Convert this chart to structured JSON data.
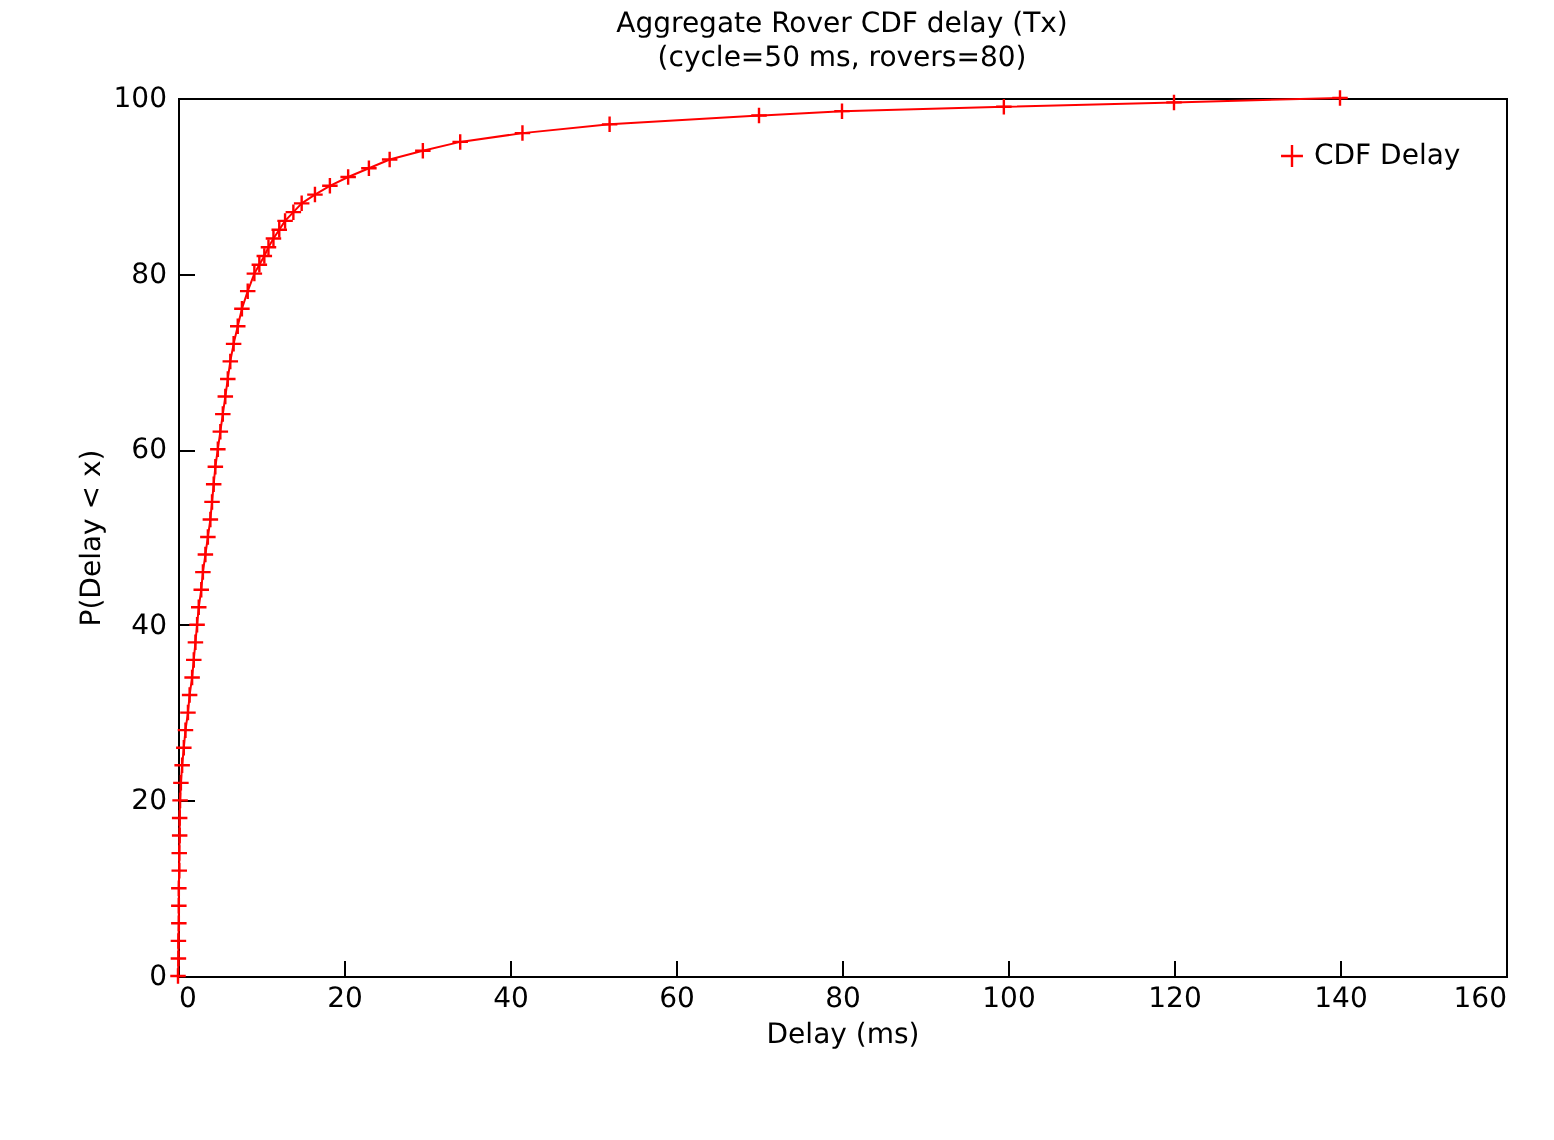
{
  "chart_data": {
    "type": "line",
    "title": "Aggregate Rover CDF delay (Tx)",
    "subtitle": "(cycle=50 ms, rovers=80)",
    "xlabel": "Delay (ms)",
    "ylabel": "P(Delay < x)",
    "xlim": [
      0,
      160
    ],
    "xticks": [
      0,
      20,
      40,
      60,
      80,
      100,
      120,
      140,
      160
    ],
    "ylim": [
      0,
      100
    ],
    "yticks": [
      0,
      20,
      40,
      60,
      80,
      100
    ],
    "grid": false,
    "legend": "top right",
    "marker": "cross",
    "line_style": "solid",
    "series": [
      {
        "name": "CDF Delay",
        "color": "#ff0000",
        "x": [
          0,
          0.05,
          0.05,
          0.1,
          0.1,
          0.1,
          0.15,
          0.15,
          0.2,
          0.2,
          0.25,
          0.35,
          0.5,
          0.7,
          0.9,
          1.2,
          1.4,
          1.7,
          1.9,
          2.1,
          2.3,
          2.5,
          2.8,
          3.0,
          3.3,
          3.6,
          3.9,
          4.1,
          4.3,
          4.5,
          4.8,
          5.1,
          5.4,
          5.7,
          6.0,
          6.3,
          6.7,
          7.2,
          7.7,
          8.4,
          9.2,
          9.8,
          10.4,
          10.9,
          11.5,
          12.2,
          12.9,
          13.9,
          14.9,
          16.5,
          18.3,
          20.5,
          23,
          25.5,
          29.5,
          34,
          41.5,
          52,
          70,
          80,
          99.5,
          120,
          140
        ],
        "values": [
          0,
          2,
          4,
          6,
          8,
          10,
          12,
          14,
          16,
          18,
          20,
          22,
          24,
          26,
          28,
          30,
          32,
          34,
          36,
          38,
          40,
          42,
          44,
          46,
          48,
          50,
          52,
          54,
          56,
          58,
          60,
          62,
          64,
          66,
          68,
          70,
          72,
          74,
          76,
          78,
          80,
          81,
          82,
          83,
          84,
          85,
          86,
          87,
          88,
          89,
          90,
          91,
          92,
          93,
          94,
          95,
          96,
          97,
          98,
          98.5,
          99,
          99.5,
          100
        ]
      }
    ]
  }
}
